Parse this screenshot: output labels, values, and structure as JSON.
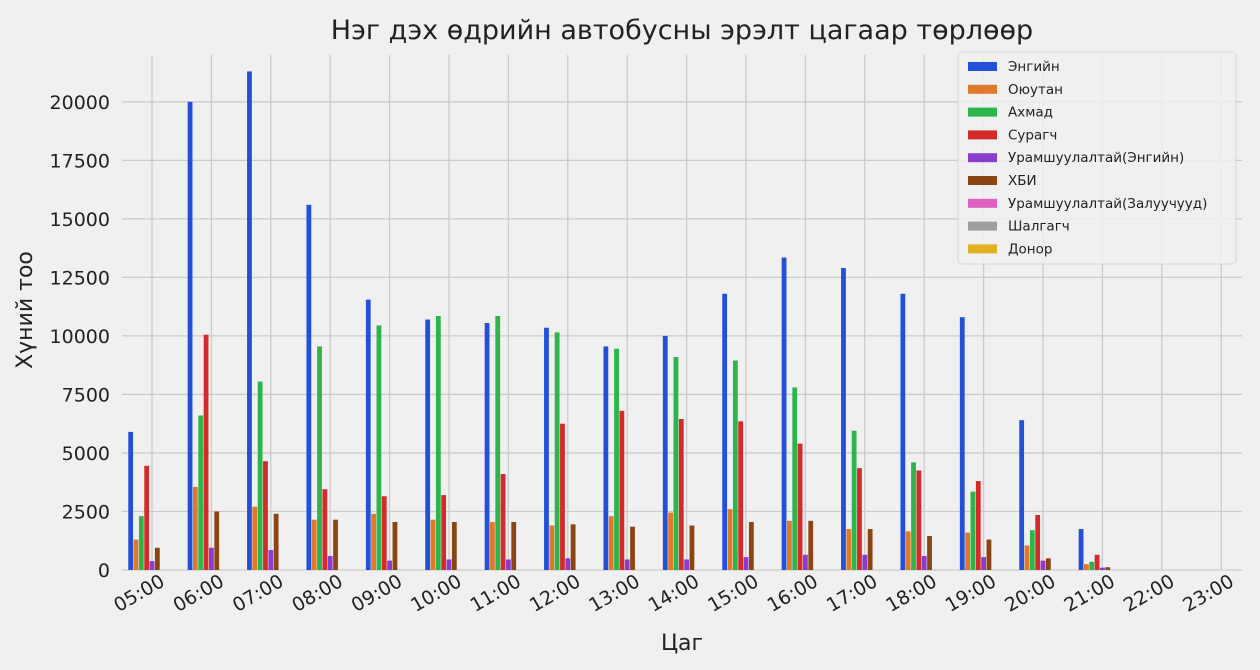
{
  "chart_data": {
    "type": "bar",
    "title": "Нэг дэх өдрийн автобусны эрэлт цагаар төрлөөр",
    "xlabel": "Цаг",
    "ylabel": "Хүний тоо",
    "ylim": [
      0,
      22000
    ],
    "yticks": [
      0,
      2500,
      5000,
      7500,
      10000,
      12500,
      15000,
      17500,
      20000
    ],
    "grid": true,
    "legend_position": "top-right",
    "categories": [
      "05:00",
      "06:00",
      "07:00",
      "08:00",
      "09:00",
      "10:00",
      "11:00",
      "12:00",
      "13:00",
      "14:00",
      "15:00",
      "16:00",
      "17:00",
      "18:00",
      "19:00",
      "20:00",
      "21:00",
      "22:00",
      "23:00"
    ],
    "series": [
      {
        "name": "Энгийн",
        "color": "#2450d8",
        "values": [
          5900,
          20000,
          21300,
          15600,
          11550,
          10700,
          10550,
          10350,
          9550,
          10000,
          11800,
          13350,
          12900,
          11800,
          10800,
          6400,
          1750,
          0,
          0
        ]
      },
      {
        "name": "Оюутан",
        "color": "#e0792a",
        "values": [
          1300,
          3550,
          2700,
          2150,
          2400,
          2150,
          2050,
          1900,
          2300,
          2450,
          2600,
          2100,
          1750,
          1650,
          1600,
          1050,
          250,
          0,
          0
        ]
      },
      {
        "name": "Ахмад",
        "color": "#2cb54a",
        "values": [
          2300,
          6600,
          8050,
          9550,
          10450,
          10850,
          10850,
          10150,
          9450,
          9100,
          8950,
          7800,
          5950,
          4600,
          3350,
          1700,
          350,
          0,
          0
        ]
      },
      {
        "name": "Сурагч",
        "color": "#d42a2a",
        "values": [
          4450,
          10050,
          4650,
          3450,
          3150,
          3200,
          4100,
          6250,
          6800,
          6450,
          6350,
          5400,
          4350,
          4250,
          3800,
          2350,
          650,
          0,
          0
        ]
      },
      {
        "name": "Урамшуулалтай(Энгийн)",
        "color": "#8a3ccc",
        "values": [
          380,
          950,
          850,
          600,
          400,
          450,
          450,
          500,
          450,
          450,
          550,
          650,
          650,
          600,
          550,
          400,
          100,
          0,
          0
        ]
      },
      {
        "name": "ХБИ",
        "color": "#8b4513",
        "values": [
          950,
          2500,
          2400,
          2150,
          2050,
          2050,
          2050,
          1950,
          1850,
          1900,
          2050,
          2100,
          1750,
          1450,
          1300,
          500,
          120,
          0,
          0
        ]
      },
      {
        "name": "Урамшуулалтай(Залуучууд)",
        "color": "#e060c0",
        "values": [
          0,
          0,
          0,
          0,
          0,
          0,
          0,
          0,
          0,
          0,
          0,
          0,
          0,
          0,
          0,
          0,
          0,
          0,
          0
        ]
      },
      {
        "name": "Шалгагч",
        "color": "#9e9e9e",
        "values": [
          0,
          0,
          0,
          0,
          0,
          0,
          0,
          0,
          0,
          0,
          0,
          0,
          0,
          0,
          0,
          0,
          0,
          0,
          0
        ]
      },
      {
        "name": "Донор",
        "color": "#e0b020",
        "values": [
          0,
          0,
          0,
          0,
          0,
          0,
          0,
          0,
          0,
          0,
          0,
          0,
          0,
          0,
          0,
          0,
          0,
          0,
          0
        ]
      }
    ]
  }
}
